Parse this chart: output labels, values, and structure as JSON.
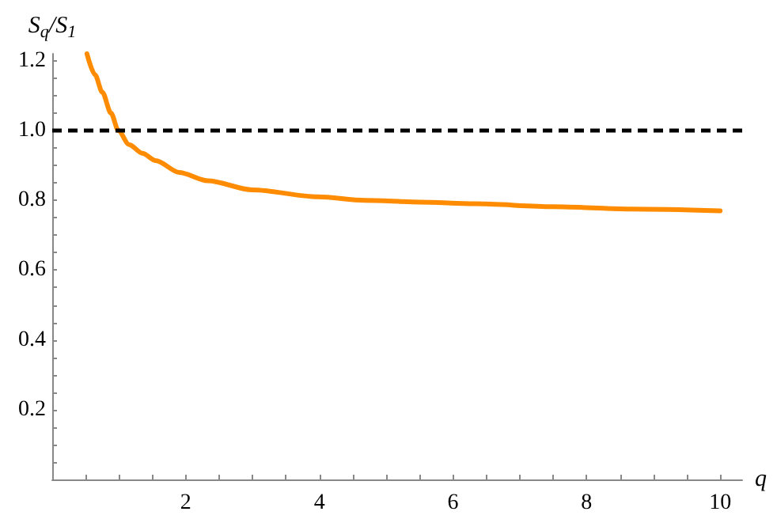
{
  "chart_data": {
    "type": "line",
    "xlabel": "q",
    "ylabel": "S$_{q}$/S$_{1}$",
    "x": [
      0.52,
      0.64,
      0.75,
      0.88,
      0.99,
      1.15,
      1.35,
      1.55,
      1.9,
      2.33,
      3.0,
      3.98,
      4.68,
      5.5,
      6.33,
      7.5,
      8.68,
      10.0
    ],
    "series": [
      {
        "color": "#ff8c00",
        "values": [
          1.22,
          1.16,
          1.11,
          1.05,
          1.0,
          0.96,
          0.935,
          0.914,
          0.88,
          0.856,
          0.83,
          0.81,
          0.8,
          0.795,
          0.79,
          0.782,
          0.775,
          0.77
        ]
      }
    ],
    "xlim": [
      0,
      10.33
    ],
    "ylim": [
      0,
      1.22
    ],
    "xticks": [
      2,
      4,
      6,
      8,
      10
    ],
    "yticks": [
      0.2,
      0.4,
      0.6,
      0.8,
      {
        "value": 1.0,
        "label": "1.0"
      },
      1.2
    ],
    "ref_lines": [
      {
        "axis": "y",
        "value": 1.0,
        "color": "#000000",
        "line_style": "dashed"
      }
    ],
    "grid": false,
    "marker": "none",
    "line_style": "solid"
  }
}
